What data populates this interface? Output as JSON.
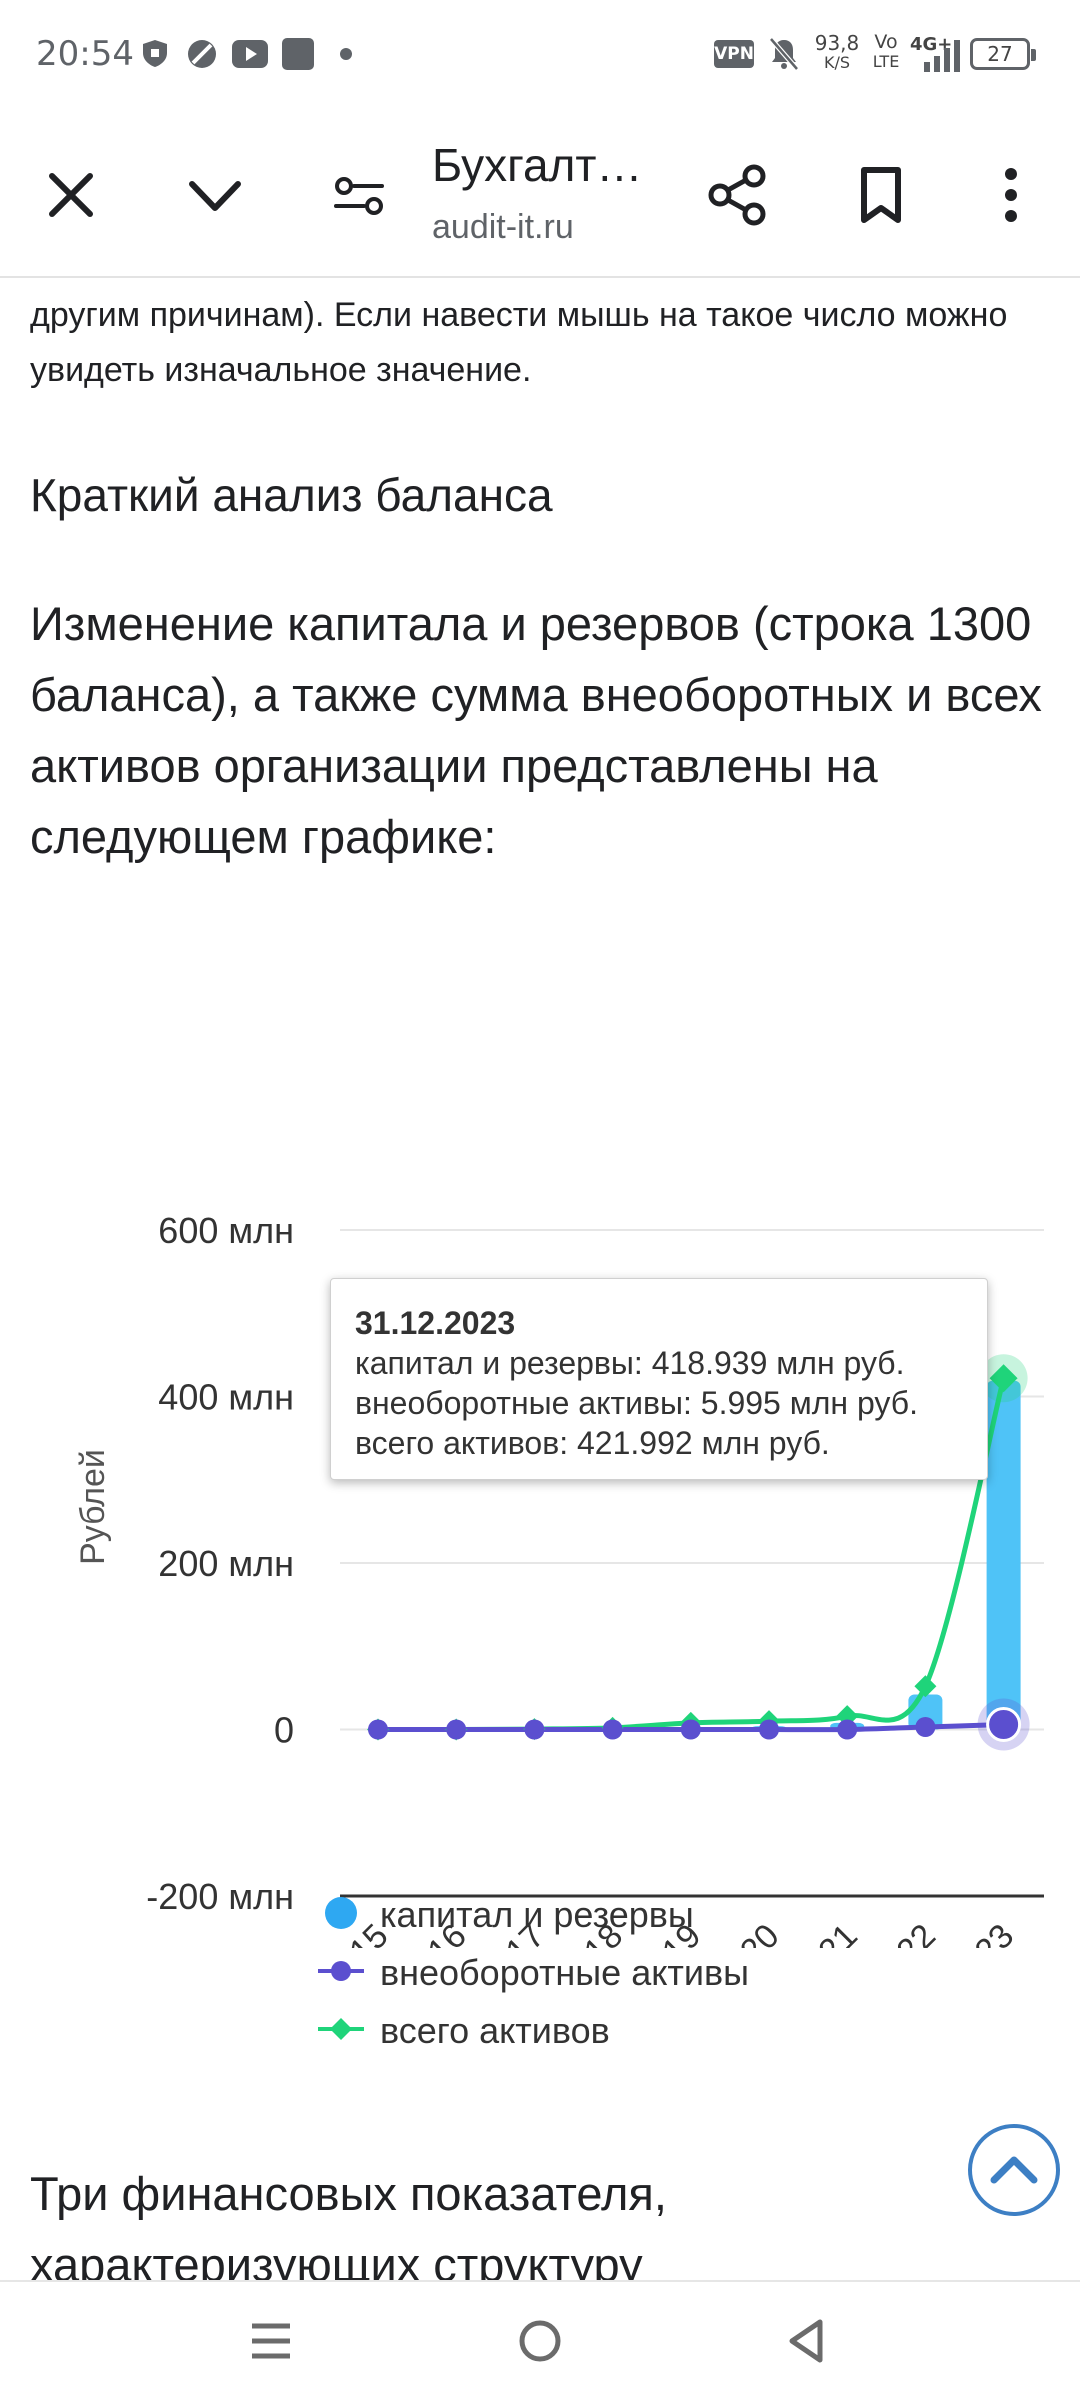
{
  "status_bar": {
    "time": "20:54",
    "net_speed_value": "93,8",
    "net_speed_unit": "K/S",
    "vpn_label": "VPN",
    "volte_top": "Vo",
    "volte_bottom": "LTE",
    "network_label": "4G+",
    "battery": "27",
    "icons": [
      "shield-icon",
      "no-disturb-icon",
      "youtube-icon",
      "app-icon",
      "dot-icon",
      "mute-icon",
      "signal-icon",
      "battery-icon"
    ]
  },
  "toolbar": {
    "title": "Бухгалт…",
    "url": "audit-it.ru",
    "icons": [
      "close-icon",
      "chevron-down-icon",
      "tune-icon",
      "share-icon",
      "bookmark-icon",
      "more-icon"
    ]
  },
  "content": {
    "cut_paragraph": "другим причинам). Если навести мышь на такое число можно увидеть изначальное значение.",
    "section_heading": "Краткий анализ баланса",
    "lead_paragraph": "Изменение капитала и резервов (строка 1300 баланса), а также сумма внеоборотных и всех активов организации представлены на следующем графике:",
    "bottom_paragraph": "Три финансовых показателя,",
    "bottom_paragraph_cut": "характеризующих структуру"
  },
  "chart_data": {
    "type": "bar+line",
    "ylabel": "Рублей",
    "y_ticks": [
      "600 млн",
      "400 млн",
      "200 млн",
      "0",
      "-200 млн"
    ],
    "y_tick_values": [
      600,
      400,
      200,
      0,
      -200
    ],
    "ylim": [
      -200,
      600
    ],
    "y_unit": "млн руб.",
    "categories": [
      "31.12.2015",
      "31.12.2016",
      "31.12.2017",
      "31.12.2018",
      "31.12.2019",
      "31.12.2020",
      "31.12.2021",
      "31.12.2022",
      "31.12.2023"
    ],
    "series": [
      {
        "name": "капитал и резервы",
        "kind": "bar",
        "color": "#4fc3f7",
        "values": [
          0,
          0,
          0,
          1,
          3,
          4,
          8,
          42,
          418.939
        ]
      },
      {
        "name": "внеоборотные активы",
        "kind": "line",
        "marker": "circle",
        "color": "#5b4fcf",
        "values": [
          0,
          0,
          0,
          0,
          0,
          0,
          0,
          3,
          5.995
        ]
      },
      {
        "name": "всего активов",
        "kind": "line",
        "marker": "diamond",
        "color": "#1fd47a",
        "values": [
          0,
          0,
          0.5,
          2,
          8,
          10,
          16,
          52,
          421.992
        ]
      }
    ],
    "tooltip": {
      "date": "31.12.2023",
      "lines": [
        "капитал и резервы: 418.939 млн руб.",
        "внеоборотные активы: 5.995 млн руб.",
        "всего активов: 421.992 млн руб."
      ]
    },
    "legend_position": "bottom",
    "grid": true
  },
  "nav_bar": {
    "icons": [
      "menu-icon",
      "home-icon",
      "back-icon"
    ]
  }
}
